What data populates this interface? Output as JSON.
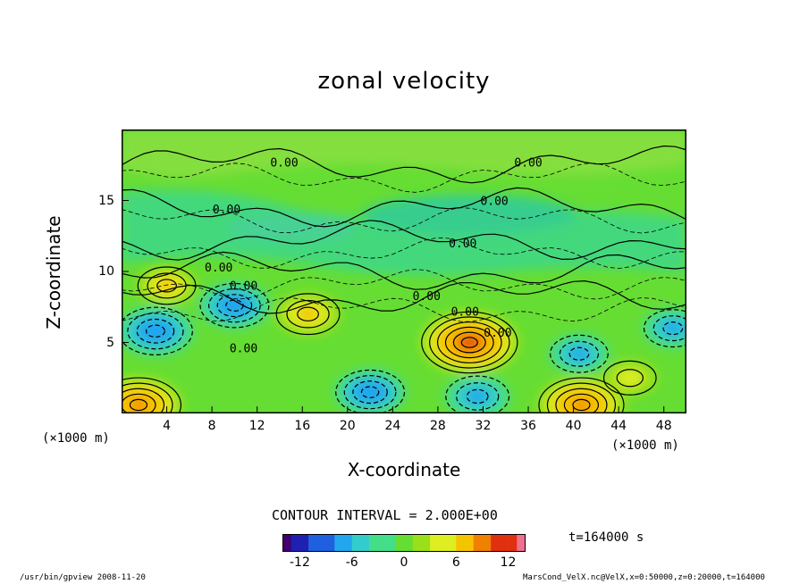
{
  "title": "zonal velocity",
  "footer": {
    "left": "/usr/bin/gpview  2008-11-20",
    "right": "MarsCond_VelX.nc@VelX,x=0:50000,z=0:20000,t=164000"
  },
  "contour_interval_text": "CONTOUR INTERVAL = 2.000E+00",
  "time_text": "t=164000 s",
  "colors": {
    "background_field": "#66dd33",
    "contour": "#000000",
    "colorbar": [
      "#400070",
      "#2020b0",
      "#1e60e0",
      "#22a6ee",
      "#33cccc",
      "#44dd88",
      "#66dd33",
      "#99e01a",
      "#ddee22",
      "#f5c400",
      "#f08000",
      "#e03010",
      "#f07090"
    ]
  },
  "chart_data": {
    "type": "heatmap",
    "title": "zonal velocity",
    "xlabel": "X-coordinate",
    "ylabel": "Z-coordinate",
    "x_unit_label": "(×1000 m)",
    "xlim": [
      0,
      50
    ],
    "ylim": [
      0,
      20
    ],
    "x_ticks": [
      "4",
      "8",
      "12",
      "16",
      "20",
      "24",
      "28",
      "32",
      "36",
      "40",
      "44",
      "48"
    ],
    "y_ticks": [
      "5",
      "10",
      "15"
    ],
    "colorbar": {
      "range": [
        -14,
        14
      ],
      "ticks": [
        "-12",
        "-6",
        "0",
        "6",
        "12"
      ]
    },
    "contour_labels": [
      "0.00"
    ],
    "features": [
      {
        "x": 30.8,
        "z": 5.0,
        "value": 12
      },
      {
        "x": 1.5,
        "z": 0.6,
        "value": 10
      },
      {
        "x": 40.7,
        "z": 0.6,
        "value": 10
      },
      {
        "x": 16.5,
        "z": 7.0,
        "value": 6
      },
      {
        "x": 3.0,
        "z": 5.8,
        "value": -8
      },
      {
        "x": 10.0,
        "z": 7.6,
        "value": -7
      },
      {
        "x": 22.0,
        "z": 1.5,
        "value": -7
      },
      {
        "x": 31.5,
        "z": 1.2,
        "value": -6
      },
      {
        "x": 40.5,
        "z": 4.2,
        "value": -5
      },
      {
        "x": 48.8,
        "z": 6.0,
        "value": -5
      },
      {
        "x": 4.0,
        "z": 9.0,
        "value": 5
      },
      {
        "x": 45.0,
        "z": 2.5,
        "value": 4
      }
    ]
  }
}
